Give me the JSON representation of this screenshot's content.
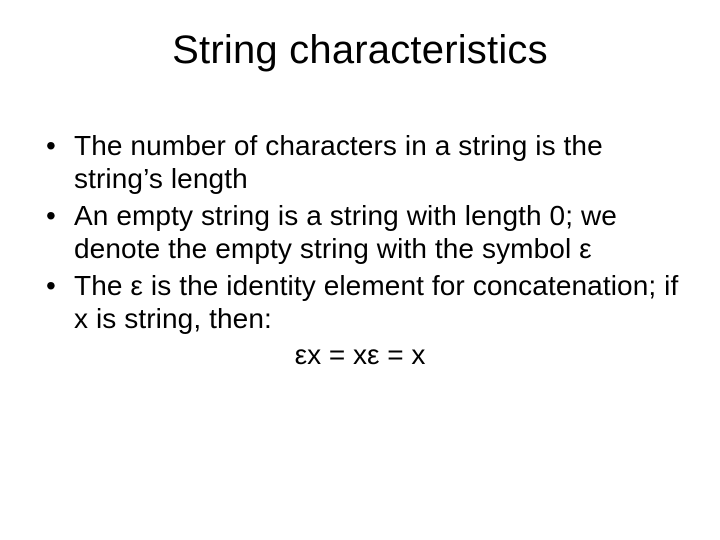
{
  "slide": {
    "title": "String characteristics",
    "bullets": [
      "The number of characters in a string is the string’s length",
      "An empty string is a string with length 0; we denote the empty string with the symbol ε",
      "The ε is the identity element for concatenation; if x is string, then:"
    ],
    "equation": "εx = xε = x"
  },
  "style": {
    "background_color": "#ffffff",
    "text_color": "#000000",
    "font_family": "Arial",
    "title_fontsize": 40,
    "body_fontsize": 28
  }
}
